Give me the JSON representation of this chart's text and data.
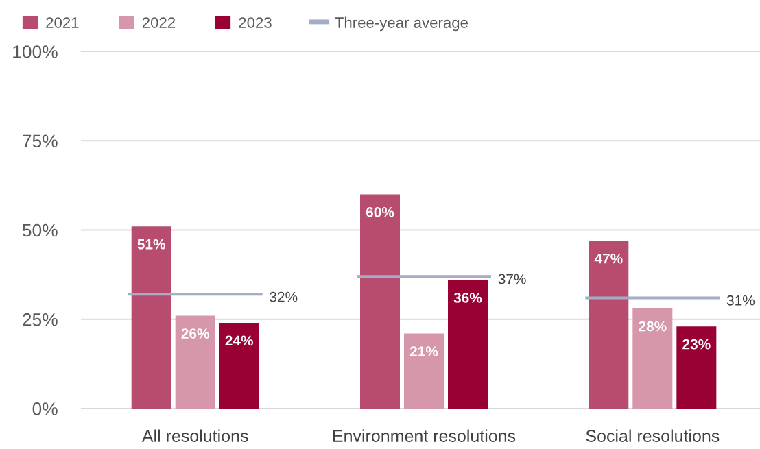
{
  "chart_data": {
    "type": "bar",
    "categories": [
      "All resolutions",
      "Environment resolutions",
      "Social resolutions"
    ],
    "series": [
      {
        "name": "2021",
        "color": "#b84c6e",
        "values": [
          51,
          60,
          47
        ],
        "value_labels": [
          "51%",
          "60%",
          "47%"
        ]
      },
      {
        "name": "2022",
        "color": "#d797ab",
        "values": [
          26,
          21,
          28
        ],
        "value_labels": [
          "26%",
          "21%",
          "28%"
        ]
      },
      {
        "name": "2023",
        "color": "#990033",
        "values": [
          24,
          36,
          23
        ],
        "value_labels": [
          "24%",
          "36%",
          "23%"
        ]
      }
    ],
    "ref_lines": [
      {
        "axis": "y",
        "value": 32,
        "label": "32%",
        "color": "#a4adc3"
      },
      {
        "axis": "y",
        "value": 37,
        "label": "37%",
        "color": "#a4adc3"
      },
      {
        "axis": "y",
        "value": 31,
        "label": "31%",
        "color": "#a4adc3"
      }
    ],
    "annotations": [
      "Three-year average"
    ],
    "ylim": [
      0,
      100
    ],
    "yticks": [
      {
        "value": 0,
        "label": "0%"
      },
      {
        "value": 25,
        "label": "25%"
      },
      {
        "value": 50,
        "label": "50%"
      },
      {
        "value": 75,
        "label": "75%"
      },
      {
        "value": 100,
        "label": "100%"
      }
    ],
    "grid": "y",
    "legend": "top"
  }
}
